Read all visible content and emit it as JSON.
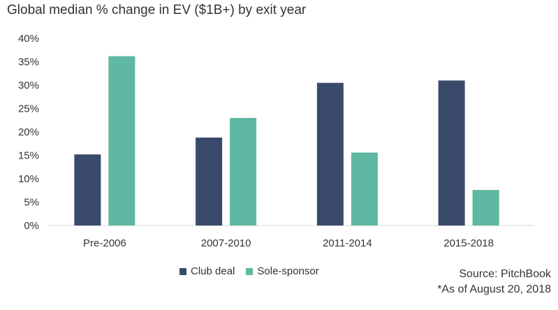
{
  "chart_data": {
    "type": "bar",
    "title": "Global median % change in EV ($1B+) by exit year",
    "categories": [
      "Pre-2006",
      "2007-2010",
      "2011-2014",
      "2015-2018"
    ],
    "series": [
      {
        "name": "Club deal",
        "color": "#3a4a6b",
        "values": [
          15.2,
          18.8,
          30.5,
          31.0
        ]
      },
      {
        "name": "Sole-sponsor",
        "color": "#5fb8a2",
        "values": [
          36.2,
          23.0,
          15.6,
          7.6
        ]
      }
    ],
    "ylim": [
      0,
      40
    ],
    "yticks": [
      0,
      5,
      10,
      15,
      20,
      25,
      30,
      35,
      40
    ],
    "ytick_labels": [
      "0%",
      "5%",
      "10%",
      "15%",
      "20%",
      "25%",
      "30%",
      "35%",
      "40%"
    ],
    "xlabel": "",
    "ylabel": "",
    "grid": false,
    "legend_position": "bottom"
  },
  "source": {
    "line1": "Source: PitchBook",
    "line2": "*As of August 20, 2018"
  }
}
